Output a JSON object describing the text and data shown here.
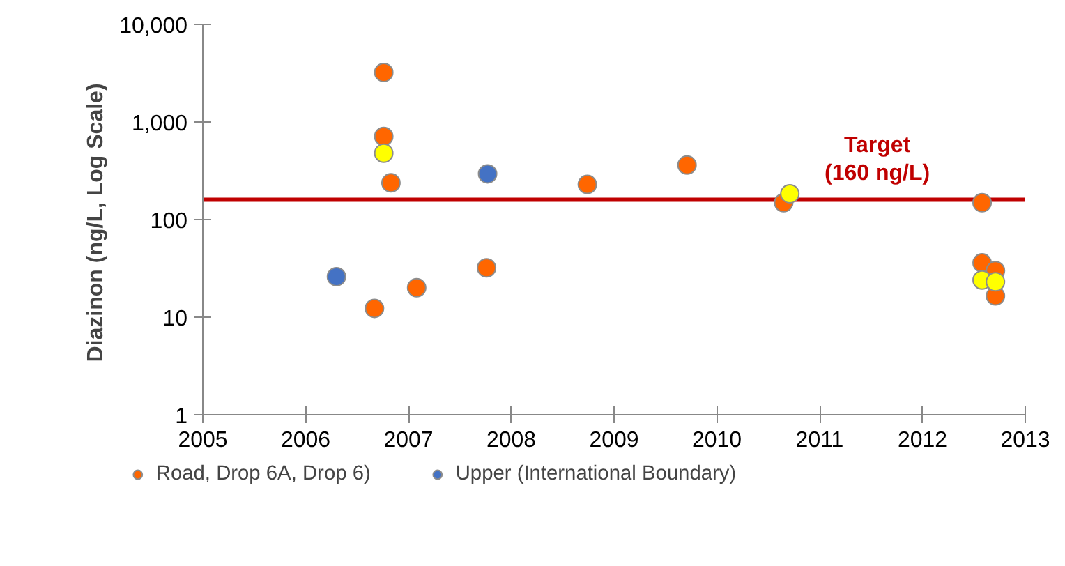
{
  "chart_data": {
    "type": "scatter",
    "ylabel": "Diazinon  (ng/L, Log Scale)",
    "xlim": [
      2005,
      2013
    ],
    "xticks": [
      2005,
      2006,
      2007,
      2008,
      2009,
      2010,
      2011,
      2012,
      2013
    ],
    "ylim": [
      1,
      10000
    ],
    "yticks": [
      1,
      10,
      100,
      {
        "value": 1000,
        "label": "1,000"
      },
      {
        "value": 10000,
        "label": "10,000"
      }
    ],
    "log": "y",
    "grid": false,
    "legend": "bottom",
    "marker": "circle",
    "series": [
      {
        "name": "Road, Drop 6A, Drop 6)",
        "color": "#ff6600",
        "x": [
          2006.76,
          2006.76,
          2006.83,
          2006.67,
          2007.08,
          2007.76,
          2008.74,
          2009.71,
          2010.65,
          2012.58,
          2012.58,
          2012.71,
          2012.71
        ],
        "values": [
          3220,
          711,
          238,
          12.3,
          20,
          32,
          229,
          362,
          149,
          149,
          36,
          30,
          16.5
        ]
      },
      {
        "name": "Upper (International Boundary)",
        "color": "#4472c4",
        "x": [
          2006.3,
          2007.77
        ],
        "values": [
          26,
          294
        ]
      },
      {
        "color": "#ffff00",
        "x": [
          2006.76,
          2010.71,
          2012.58,
          2012.71
        ],
        "values": [
          479,
          184,
          24,
          23
        ]
      }
    ],
    "ref_lines": [
      {
        "axis": "y",
        "value": 160,
        "label": "Target\n(160 ng/L)",
        "color": "#c00000",
        "line_style": "solid"
      }
    ]
  }
}
